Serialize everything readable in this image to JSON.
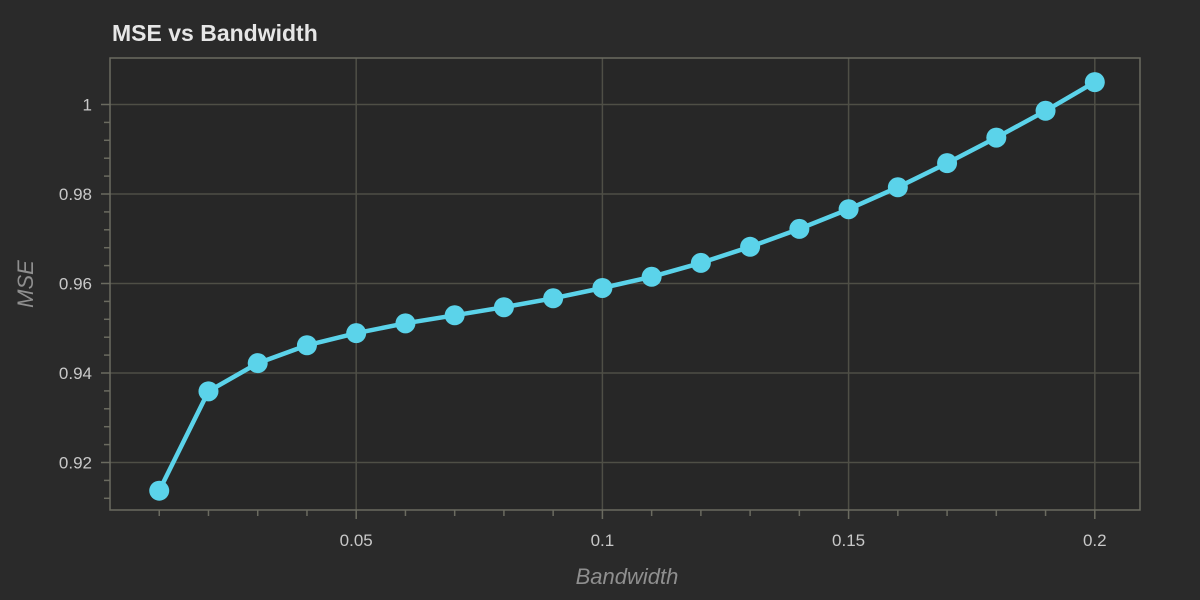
{
  "chart_data": {
    "type": "line",
    "title": "MSE vs Bandwidth",
    "xlabel": "Bandwidth",
    "ylabel": "MSE",
    "xlim": [
      0.0,
      0.21
    ],
    "ylim": [
      0.91,
      1.01
    ],
    "xticks": [
      {
        "value": 0.05,
        "label": "0.05"
      },
      {
        "value": 0.1,
        "label": "0.1"
      },
      {
        "value": 0.15,
        "label": "0.15"
      },
      {
        "value": 0.2,
        "label": "0.2"
      }
    ],
    "yticks": [
      {
        "value": 0.92,
        "label": "0.92"
      },
      {
        "value": 0.94,
        "label": "0.94"
      },
      {
        "value": 0.96,
        "label": "0.96"
      },
      {
        "value": 0.98,
        "label": "0.98"
      },
      {
        "value": 1.0,
        "label": "1"
      }
    ],
    "grid": true,
    "legend": false,
    "colors": {
      "background": "#2a2a2a",
      "plot_background": "#272727",
      "grid": "#4f4f46",
      "axis": "#6b6b60",
      "series": "#5bd3ea"
    },
    "series": [
      {
        "x": [
          0.01,
          0.02,
          0.03,
          0.04,
          0.05,
          0.06,
          0.07,
          0.08,
          0.09,
          0.1,
          0.11,
          0.12,
          0.13,
          0.14,
          0.15,
          0.16,
          0.17,
          0.18,
          0.19,
          0.2
        ],
        "values": [
          0.9137,
          0.9359,
          0.9422,
          0.9462,
          0.9489,
          0.9511,
          0.9529,
          0.9547,
          0.9567,
          0.959,
          0.9615,
          0.9646,
          0.9682,
          0.9722,
          0.9766,
          0.9815,
          0.9869,
          0.9926,
          0.9986,
          1.005
        ]
      }
    ]
  }
}
